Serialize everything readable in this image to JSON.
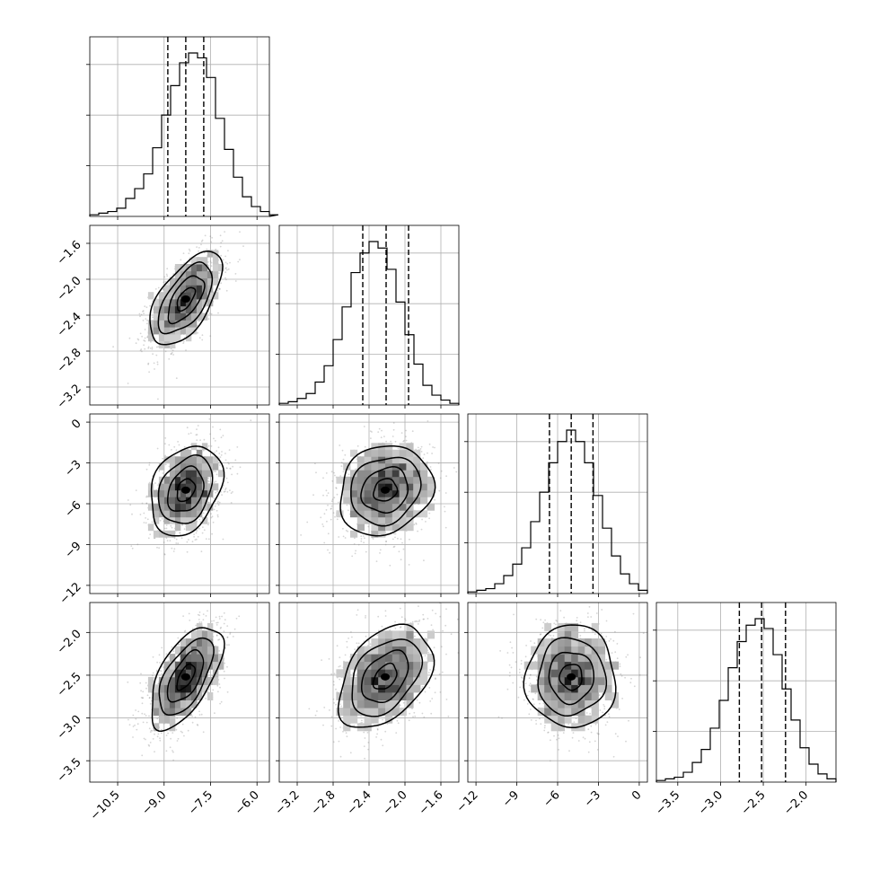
{
  "chart_data": {
    "type": "corner",
    "grid": true,
    "params": [
      {
        "center": -8.3,
        "sd": 0.58,
        "q16": -8.88,
        "q50": -8.3,
        "q84": -7.72,
        "range": [
          -11.4,
          -5.6
        ],
        "ticks": [
          {
            "v": -10.5,
            "label": "−10.5"
          },
          {
            "v": -9.0,
            "label": "−9.0"
          },
          {
            "v": -7.5,
            "label": "−7.5"
          },
          {
            "v": -6.0,
            "label": "−6.0"
          }
        ]
      },
      {
        "center": -2.22,
        "sd": 0.26,
        "q16": -2.47,
        "q50": -2.21,
        "q84": -1.96,
        "range": [
          -3.4,
          -1.4
        ],
        "ticks": [
          {
            "v": -3.2,
            "label": "−3.2"
          },
          {
            "v": -2.8,
            "label": "−2.8"
          },
          {
            "v": -2.4,
            "label": "−2.4"
          },
          {
            "v": -2.0,
            "label": "−2.0"
          },
          {
            "v": -1.6,
            "label": "−1.6"
          }
        ]
      },
      {
        "center": -5.0,
        "sd": 1.65,
        "q16": -6.6,
        "q50": -5.0,
        "q84": -3.4,
        "range": [
          -12.6,
          0.6
        ],
        "ticks": [
          {
            "v": -12,
            "label": "−12"
          },
          {
            "v": -9,
            "label": "−9"
          },
          {
            "v": -6,
            "label": "−6"
          },
          {
            "v": -3,
            "label": "−3"
          },
          {
            "v": 0,
            "label": "0"
          }
        ]
      },
      {
        "center": -2.52,
        "sd": 0.3,
        "q16": -2.78,
        "q50": -2.52,
        "q84": -2.24,
        "range": [
          -3.75,
          -1.65
        ],
        "ticks": [
          {
            "v": -3.5,
            "label": "−3.5"
          },
          {
            "v": -3.0,
            "label": "−3.0"
          },
          {
            "v": -2.5,
            "label": "−2.5"
          },
          {
            "v": -2.0,
            "label": "−2.0"
          }
        ]
      }
    ],
    "histograms": [
      {
        "param": 0,
        "bin_start": -11.4,
        "bin_width": 0.29,
        "counts": [
          0.01,
          0.02,
          0.03,
          0.05,
          0.11,
          0.17,
          0.26,
          0.42,
          0.62,
          0.8,
          0.94,
          1.0,
          0.97,
          0.85,
          0.6,
          0.41,
          0.24,
          0.12,
          0.06,
          0.03,
          0.01
        ]
      },
      {
        "param": 1,
        "bin_start": -3.4,
        "bin_width": 0.1,
        "counts": [
          0.01,
          0.02,
          0.04,
          0.07,
          0.14,
          0.24,
          0.4,
          0.6,
          0.81,
          0.93,
          1.0,
          0.96,
          0.83,
          0.63,
          0.43,
          0.25,
          0.12,
          0.06,
          0.03,
          0.01
        ]
      },
      {
        "param": 2,
        "bin_start": -12.6,
        "bin_width": 0.66,
        "counts": [
          0.01,
          0.02,
          0.03,
          0.06,
          0.11,
          0.18,
          0.28,
          0.44,
          0.62,
          0.8,
          0.93,
          1.0,
          0.93,
          0.8,
          0.6,
          0.4,
          0.23,
          0.12,
          0.06,
          0.02
        ]
      },
      {
        "param": 3,
        "bin_start": -3.75,
        "bin_width": 0.105,
        "counts": [
          0.01,
          0.02,
          0.03,
          0.06,
          0.12,
          0.2,
          0.33,
          0.5,
          0.7,
          0.86,
          0.96,
          1.0,
          0.94,
          0.78,
          0.57,
          0.38,
          0.21,
          0.11,
          0.05,
          0.02
        ]
      }
    ],
    "correlations": [
      {
        "row": 1,
        "col": 0,
        "rho": 0.6
      },
      {
        "row": 2,
        "col": 0,
        "rho": 0.28
      },
      {
        "row": 2,
        "col": 1,
        "rho": 0.15
      },
      {
        "row": 3,
        "col": 0,
        "rho": 0.6
      },
      {
        "row": 3,
        "col": 1,
        "rho": 0.4
      },
      {
        "row": 3,
        "col": 2,
        "rho": 0.0
      }
    ],
    "contour_levels": [
      0.5,
      1.0,
      1.5,
      2.0
    ]
  }
}
